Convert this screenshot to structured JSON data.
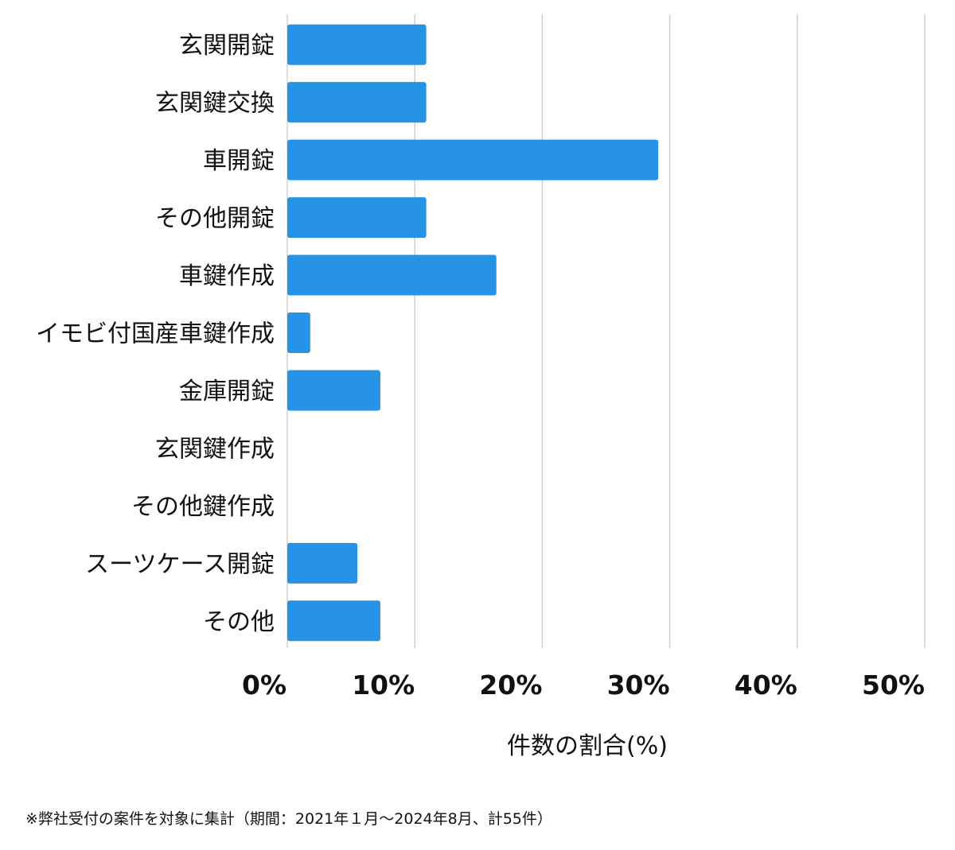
{
  "chart_data": {
    "type": "bar",
    "orientation": "horizontal",
    "categories": [
      "玄関開錠",
      "玄関鍵交換",
      "車開錠",
      "その他開錠",
      "車鍵作成",
      "イモビ付国産車鍵作成",
      "金庫開錠",
      "玄関鍵作成",
      "その他鍵作成",
      "スーツケース開錠",
      "その他"
    ],
    "values": [
      10.9,
      10.9,
      29.1,
      10.9,
      16.4,
      1.8,
      7.3,
      0,
      0,
      5.5,
      7.3
    ],
    "xlabel": "件数の割合(%)",
    "ylabel": "",
    "xlim": [
      0,
      50
    ],
    "xticks": [
      "0%",
      "10%",
      "20%",
      "30%",
      "40%",
      "50%"
    ],
    "grid": "vertical",
    "bar_color": "#2793e6",
    "grid_color": "#d0d0d0"
  },
  "footnote": "※弊社受付の案件を対象に集計（期間：2021年１月〜2024年8月、計55件）"
}
